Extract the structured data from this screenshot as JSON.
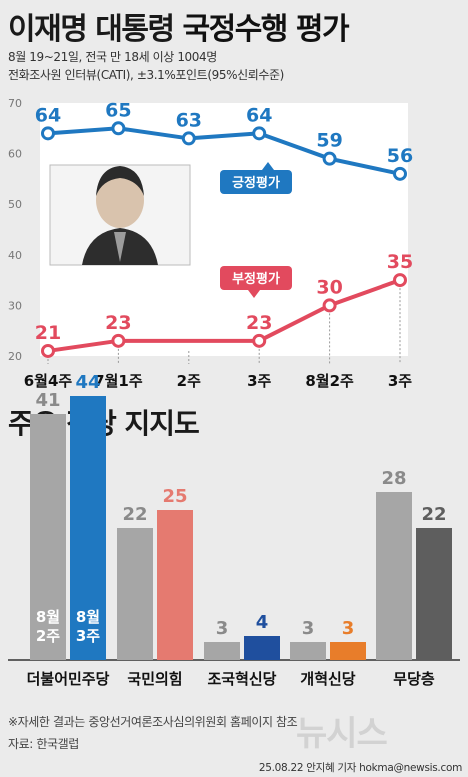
{
  "header": {
    "title_part1": "이재명 대통령",
    "title_part2": "국정수행 평가",
    "subtitle_line1": "8월 19~21일, 전국 만 18세 이상 1004명",
    "subtitle_line2": "전화조사원 인터뷰(CATI), ±3.1%포인트(95%신뢰수준)"
  },
  "section2_title": "주요 정당 지지도",
  "footnote": "※자세한 결과는 중앙선거여론조사심의위원회 홈페이지 참조",
  "source": "자료: 한국갤럽",
  "credit": "25.08.22 안지혜 기자 hokma@newsis.com",
  "watermark": "뉴시스",
  "colors": {
    "positive": "#1f78c1",
    "negative": "#e24a5e",
    "gray_prev": "#a6a6a6",
    "blue_cur": "#1f78c1",
    "red_cur": "#e57a70",
    "darkblue_cur": "#1f4f9e",
    "orange_cur": "#e87d2a",
    "gray_cur": "#5e5e5e"
  },
  "chart_data": [
    {
      "type": "line",
      "x": [
        "6월4주",
        "7월1주",
        "2주",
        "3주",
        "8월2주",
        "3주"
      ],
      "ylim": [
        20,
        70
      ],
      "yticks": [
        "70",
        "60",
        "50",
        "40",
        "30",
        "20"
      ],
      "grid": false,
      "series": [
        {
          "name": "긍정평가",
          "values": [
            64,
            65,
            63,
            64,
            59,
            56
          ]
        },
        {
          "name": "부정평가",
          "values": [
            21,
            23,
            null,
            23,
            30,
            35
          ]
        }
      ]
    },
    {
      "type": "bar",
      "categories": [
        "더불어민주당",
        "국민의힘",
        "조국혁신당",
        "개혁신당",
        "무당층"
      ],
      "series": [
        {
          "name": "8월 2주",
          "values": [
            41,
            22,
            3,
            3,
            28
          ]
        },
        {
          "name": "8월 3주",
          "values": [
            44,
            25,
            4,
            3,
            22
          ]
        }
      ],
      "legend_labels": [
        "8월\n2주",
        "8월\n3주"
      ],
      "legend_placement": "inside-first-bars"
    }
  ]
}
